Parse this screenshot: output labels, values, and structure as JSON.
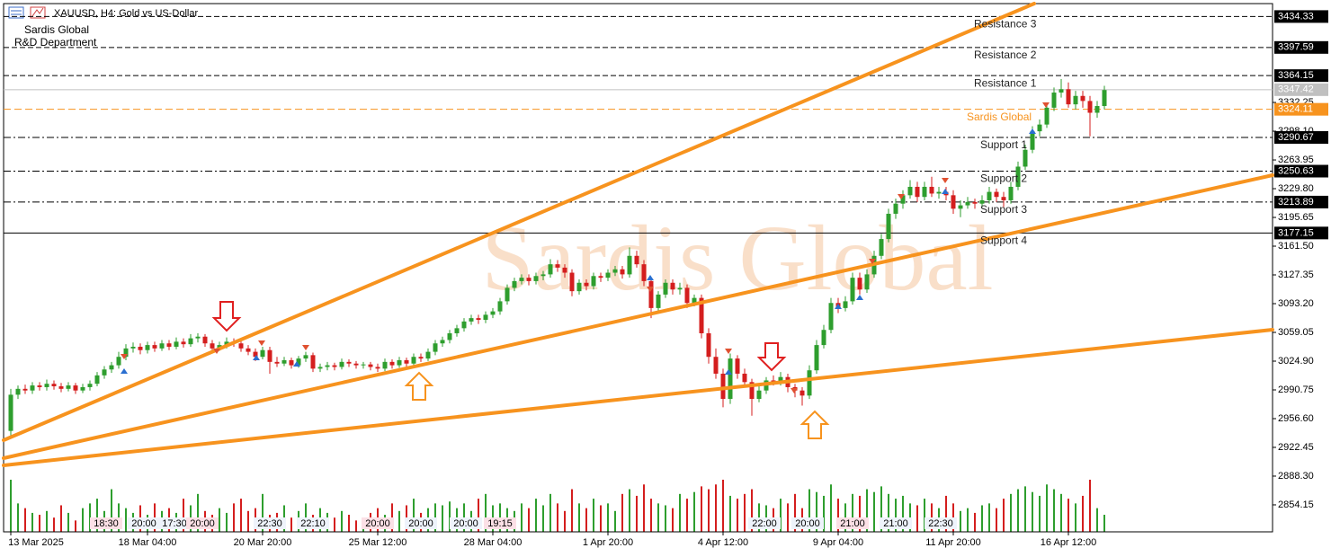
{
  "chart_data": {
    "type": "candlestick",
    "title": "XAUUSD, H4:  Gold vs US-Dollar",
    "subtitle": [
      "Sardis Global",
      "R&D Department"
    ],
    "watermark": "Sardis Global",
    "up_color": "#2e9e2e",
    "down_color": "#d41e1e",
    "ylim": [
      2822.1,
      3449.7
    ],
    "yticks": [
      3332.25,
      {
        "value": 3298.1,
        "label": "3298.10"
      },
      3263.95,
      {
        "value": 3229.8,
        "label": "3229.80"
      },
      3195.65,
      {
        "value": 3161.5,
        "label": "3161.50"
      },
      3127.35,
      {
        "value": 3093.2,
        "label": "3093.20"
      },
      3059.05,
      {
        "value": 3024.9,
        "label": "3024.90"
      },
      2990.75,
      {
        "value": 2956.6,
        "label": "2956.60"
      },
      2922.45,
      {
        "value": 2888.3,
        "label": "2888.30"
      },
      2854.15
    ],
    "levels": [
      {
        "label": "Resistance 3",
        "value": 3434.33,
        "style": "dashed"
      },
      {
        "label": "Resistance 2",
        "value": 3397.59,
        "style": "dashed"
      },
      {
        "label": "Resistance 1",
        "value": 3364.15,
        "style": "dashed"
      },
      {
        "label": "Support 1",
        "value": 3290.67,
        "style": "dashdot"
      },
      {
        "label": "Support 2",
        "value": 3250.63,
        "style": "dashdot"
      },
      {
        "label": "Support 3",
        "value": 3213.89,
        "style": "dashdot"
      },
      {
        "label": "Support 4",
        "value": 3177.15,
        "style": "solid"
      }
    ],
    "sardis_level": {
      "label": "Sardis Global",
      "value": 3324.11,
      "color": "#f7931e"
    },
    "current_price": 3347.42,
    "time_marks": [
      "18:30",
      "20:00",
      "17:30",
      "20:00",
      "22:30",
      "22:10",
      "20:00",
      "20:00",
      "20:00",
      "19:15",
      "22:00",
      "20:00",
      "21:00",
      "21:00",
      "22:30"
    ],
    "categories": [
      "13 Mar 2025",
      null,
      null,
      null,
      null,
      null,
      null,
      null,
      null,
      null,
      null,
      null,
      null,
      null,
      null,
      null,
      null,
      null,
      null,
      "18 Mar 04:00",
      null,
      null,
      null,
      null,
      null,
      null,
      null,
      null,
      null,
      null,
      null,
      null,
      null,
      null,
      null,
      "20 Mar 20:00",
      null,
      null,
      null,
      null,
      null,
      null,
      null,
      null,
      null,
      null,
      null,
      null,
      null,
      null,
      null,
      "25 Mar 12:00",
      null,
      null,
      null,
      null,
      null,
      null,
      null,
      null,
      null,
      null,
      null,
      null,
      null,
      null,
      null,
      "28 Mar 04:00",
      null,
      null,
      null,
      null,
      null,
      null,
      null,
      null,
      null,
      null,
      null,
      null,
      null,
      null,
      null,
      "1 Apr 20:00",
      null,
      null,
      null,
      null,
      null,
      null,
      null,
      null,
      null,
      null,
      null,
      null,
      null,
      null,
      null,
      "4 Apr 12:00",
      null,
      null,
      null,
      null,
      null,
      null,
      null,
      null,
      null,
      null,
      null,
      null,
      null,
      null,
      null,
      "9 Apr 04:00",
      null,
      null,
      null,
      null,
      null,
      null,
      null,
      null,
      null,
      null,
      null,
      null,
      null,
      null,
      null,
      "11 Apr 20:00",
      null,
      null,
      null,
      null,
      null,
      null,
      null,
      null,
      null,
      null,
      null,
      null,
      null,
      null,
      null,
      "16 Apr 12:00",
      null,
      null,
      null,
      null,
      null
    ],
    "candles": [
      [
        2942,
        2992,
        2934,
        2985
      ],
      [
        2985,
        2996,
        2980,
        2992
      ],
      [
        2992,
        2997,
        2986,
        2990
      ],
      [
        2990,
        3000,
        2986,
        2996
      ],
      [
        2996,
        3000,
        2990,
        2994
      ],
      [
        2994,
        3003,
        2990,
        2998
      ],
      [
        2998,
        3002,
        2991,
        2995
      ],
      [
        2995,
        2999,
        2988,
        2992
      ],
      [
        2992,
        3000,
        2989,
        2996
      ],
      [
        2996,
        2999,
        2986,
        2990
      ],
      [
        2990,
        2998,
        2987,
        2994
      ],
      [
        2994,
        3002,
        2990,
        2998
      ],
      [
        2998,
        3012,
        2995,
        3008
      ],
      [
        3008,
        3019,
        3004,
        3015
      ],
      [
        3015,
        3024,
        3011,
        3020
      ],
      [
        3020,
        3036,
        3016,
        3030
      ],
      [
        3030,
        3045,
        3026,
        3040
      ],
      [
        3040,
        3047,
        3035,
        3042
      ],
      [
        3042,
        3046,
        3033,
        3038
      ],
      [
        3038,
        3048,
        3034,
        3044
      ],
      [
        3044,
        3048,
        3036,
        3040
      ],
      [
        3040,
        3050,
        3037,
        3046
      ],
      [
        3046,
        3050,
        3038,
        3042
      ],
      [
        3042,
        3053,
        3039,
        3048
      ],
      [
        3048,
        3052,
        3041,
        3045
      ],
      [
        3045,
        3057,
        3042,
        3052
      ],
      [
        3052,
        3058,
        3047,
        3054
      ],
      [
        3054,
        3057,
        3042,
        3046
      ],
      [
        3046,
        3050,
        3036,
        3040
      ],
      [
        3040,
        3048,
        3037,
        3044
      ],
      [
        3044,
        3053,
        3040,
        3048
      ],
      [
        3048,
        3052,
        3042,
        3046
      ],
      [
        3046,
        3050,
        3036,
        3040
      ],
      [
        3040,
        3044,
        3032,
        3036
      ],
      [
        3036,
        3040,
        3025,
        3030
      ],
      [
        3030,
        3042,
        3027,
        3038
      ],
      [
        3038,
        3042,
        3010,
        3024
      ],
      [
        3024,
        3030,
        3018,
        3022
      ],
      [
        3022,
        3030,
        3019,
        3026
      ],
      [
        3026,
        3029,
        3016,
        3020
      ],
      [
        3020,
        3031,
        3017,
        3028
      ],
      [
        3028,
        3036,
        3024,
        3032
      ],
      [
        3032,
        3035,
        3012,
        3016
      ],
      [
        3016,
        3022,
        3012,
        3018
      ],
      [
        3018,
        3024,
        3014,
        3020
      ],
      [
        3020,
        3023,
        3014,
        3018
      ],
      [
        3018,
        3028,
        3015,
        3024
      ],
      [
        3024,
        3027,
        3018,
        3022
      ],
      [
        3022,
        3025,
        3016,
        3020
      ],
      [
        3020,
        3024,
        3016,
        3021
      ],
      [
        3021,
        3024,
        3014,
        3018
      ],
      [
        3018,
        3022,
        3012,
        3016
      ],
      [
        3016,
        3028,
        3013,
        3024
      ],
      [
        3024,
        3027,
        3016,
        3020
      ],
      [
        3020,
        3030,
        3017,
        3026
      ],
      [
        3026,
        3029,
        3018,
        3022
      ],
      [
        3022,
        3034,
        3019,
        3030
      ],
      [
        3030,
        3034,
        3024,
        3028
      ],
      [
        3028,
        3040,
        3025,
        3036
      ],
      [
        3036,
        3050,
        3032,
        3046
      ],
      [
        3046,
        3054,
        3042,
        3050
      ],
      [
        3050,
        3062,
        3046,
        3058
      ],
      [
        3058,
        3068,
        3054,
        3064
      ],
      [
        3064,
        3076,
        3060,
        3072
      ],
      [
        3072,
        3080,
        3068,
        3076
      ],
      [
        3076,
        3080,
        3069,
        3074
      ],
      [
        3074,
        3084,
        3070,
        3080
      ],
      [
        3080,
        3088,
        3076,
        3084
      ],
      [
        3084,
        3100,
        3080,
        3096
      ],
      [
        3096,
        3116,
        3092,
        3112
      ],
      [
        3112,
        3124,
        3108,
        3120
      ],
      [
        3120,
        3128,
        3116,
        3124
      ],
      [
        3124,
        3128,
        3115,
        3120
      ],
      [
        3120,
        3130,
        3116,
        3126
      ],
      [
        3126,
        3132,
        3121,
        3128
      ],
      [
        3128,
        3146,
        3124,
        3140
      ],
      [
        3140,
        3145,
        3131,
        3136
      ],
      [
        3136,
        3140,
        3124,
        3130
      ],
      [
        3130,
        3134,
        3102,
        3108
      ],
      [
        3108,
        3122,
        3104,
        3118
      ],
      [
        3118,
        3122,
        3109,
        3114
      ],
      [
        3114,
        3130,
        3110,
        3126
      ],
      [
        3126,
        3130,
        3119,
        3124
      ],
      [
        3124,
        3134,
        3120,
        3130
      ],
      [
        3130,
        3138,
        3126,
        3134
      ],
      [
        3134,
        3138,
        3123,
        3128
      ],
      [
        3128,
        3160,
        3124,
        3150
      ],
      [
        3150,
        3156,
        3136,
        3140
      ],
      [
        3140,
        3145,
        3114,
        3120
      ],
      [
        3120,
        3124,
        3076,
        3088
      ],
      [
        3088,
        3108,
        3082,
        3104
      ],
      [
        3104,
        3122,
        3100,
        3118
      ],
      [
        3118,
        3122,
        3104,
        3110
      ],
      [
        3110,
        3118,
        3104,
        3112
      ],
      [
        3112,
        3116,
        3088,
        3094
      ],
      [
        3094,
        3104,
        3090,
        3100
      ],
      [
        3100,
        3104,
        3052,
        3058
      ],
      [
        3058,
        3064,
        3022,
        3030
      ],
      [
        3030,
        3040,
        3004,
        3010
      ],
      [
        3010,
        3016,
        2970,
        2980
      ],
      [
        2980,
        3034,
        2974,
        3028
      ],
      [
        3028,
        3032,
        3004,
        3010
      ],
      [
        3010,
        3016,
        2994,
        3000
      ],
      [
        3000,
        3004,
        2960,
        2980
      ],
      [
        2980,
        2996,
        2976,
        2990
      ],
      [
        2990,
        3006,
        2986,
        3002
      ],
      [
        3002,
        3008,
        2996,
        3000
      ],
      [
        3000,
        3012,
        2996,
        3006
      ],
      [
        3006,
        3010,
        2988,
        2994
      ],
      [
        2994,
        2998,
        2982,
        2990
      ],
      [
        2990,
        2994,
        2972,
        2984
      ],
      [
        2984,
        3020,
        2980,
        3014
      ],
      [
        3014,
        3050,
        3010,
        3044
      ],
      [
        3044,
        3068,
        3040,
        3062
      ],
      [
        3062,
        3100,
        3058,
        3094
      ],
      [
        3094,
        3100,
        3082,
        3088
      ],
      [
        3088,
        3102,
        3084,
        3096
      ],
      [
        3096,
        3130,
        3092,
        3124
      ],
      [
        3124,
        3130,
        3104,
        3110
      ],
      [
        3110,
        3134,
        3106,
        3128
      ],
      [
        3128,
        3156,
        3124,
        3150
      ],
      [
        3150,
        3176,
        3146,
        3170
      ],
      [
        3170,
        3206,
        3166,
        3200
      ],
      [
        3200,
        3218,
        3194,
        3212
      ],
      [
        3212,
        3228,
        3206,
        3222
      ],
      [
        3222,
        3240,
        3218,
        3232
      ],
      [
        3232,
        3238,
        3214,
        3220
      ],
      [
        3220,
        3238,
        3216,
        3232
      ],
      [
        3232,
        3244,
        3220,
        3224
      ],
      [
        3224,
        3232,
        3218,
        3226
      ],
      [
        3226,
        3232,
        3216,
        3222
      ],
      [
        3222,
        3228,
        3200,
        3206
      ],
      [
        3206,
        3216,
        3196,
        3210
      ],
      [
        3210,
        3220,
        3206,
        3214
      ],
      [
        3214,
        3218,
        3206,
        3212
      ],
      [
        3212,
        3222,
        3208,
        3216
      ],
      [
        3216,
        3232,
        3212,
        3226
      ],
      [
        3226,
        3230,
        3214,
        3220
      ],
      [
        3220,
        3226,
        3208,
        3216
      ],
      [
        3216,
        3238,
        3212,
        3232
      ],
      [
        3232,
        3262,
        3228,
        3256
      ],
      [
        3256,
        3282,
        3252,
        3276
      ],
      [
        3276,
        3304,
        3272,
        3298
      ],
      [
        3298,
        3312,
        3292,
        3306
      ],
      [
        3306,
        3332,
        3302,
        3326
      ],
      [
        3326,
        3350,
        3322,
        3344
      ],
      [
        3344,
        3360,
        3338,
        3348
      ],
      [
        3348,
        3356,
        3326,
        3330
      ],
      [
        3330,
        3346,
        3324,
        3340
      ],
      [
        3340,
        3346,
        3326,
        3334
      ],
      [
        3334,
        3340,
        3292,
        3320
      ],
      [
        3320,
        3334,
        3314,
        3328
      ],
      [
        3328,
        3352,
        3324,
        3347
      ]
    ],
    "volumes": [
      55,
      30,
      25,
      20,
      18,
      22,
      15,
      28,
      20,
      12,
      25,
      30,
      35,
      22,
      45,
      30,
      25,
      20,
      28,
      18,
      30,
      22,
      25,
      20,
      35,
      28,
      40,
      22,
      18,
      25,
      20,
      30,
      35,
      22,
      25,
      40,
      18,
      20,
      28,
      15,
      22,
      30,
      18,
      25,
      20,
      15,
      22,
      18,
      12,
      10,
      20,
      25,
      18,
      30,
      22,
      28,
      35,
      20,
      25,
      30,
      28,
      32,
      25,
      30,
      22,
      35,
      40,
      28,
      30,
      25,
      22,
      30,
      25,
      35,
      28,
      40,
      30,
      22,
      45,
      30,
      25,
      35,
      28,
      30,
      22,
      40,
      45,
      38,
      50,
      35,
      30,
      28,
      25,
      40,
      35,
      42,
      48,
      45,
      50,
      55,
      38,
      35,
      40,
      45,
      30,
      28,
      25,
      35,
      30,
      40,
      25,
      45,
      42,
      38,
      50,
      35,
      30,
      40,
      38,
      45,
      42,
      48,
      40,
      35,
      38,
      30,
      28,
      35,
      30,
      25,
      38,
      30,
      22,
      25,
      20,
      28,
      30,
      25,
      35,
      40,
      45,
      48,
      42,
      38,
      50,
      45,
      40,
      35,
      30,
      38,
      55,
      25,
      18
    ]
  }
}
